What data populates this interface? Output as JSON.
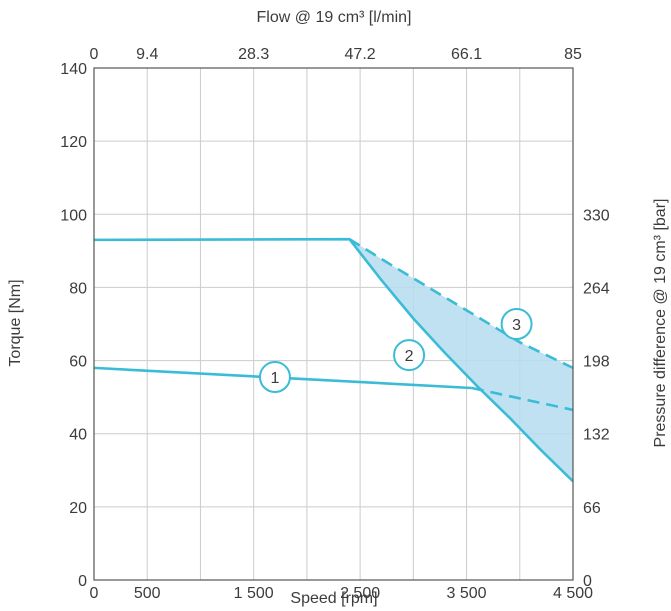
{
  "chart_data": {
    "type": "line",
    "title": "",
    "xlabel": "Speed [rpm]",
    "ylabel": "Torque [Nm]",
    "x2label": "Flow @ 19 cm³ [l/min]",
    "y2label": "Pressure difference @ 19 cm³ [bar]",
    "xlim": [
      0,
      4500
    ],
    "ylim": [
      0,
      140
    ],
    "grid": true,
    "x_ticks": [
      {
        "value": 0,
        "label": "0"
      },
      {
        "value": 500,
        "label": "500"
      },
      {
        "value": 1500,
        "label": "1 500"
      },
      {
        "value": 2500,
        "label": "2 500"
      },
      {
        "value": 3500,
        "label": "3 500"
      },
      {
        "value": 4500,
        "label": "4 500"
      }
    ],
    "x_grid": [
      0,
      500,
      1000,
      1500,
      2000,
      2500,
      3000,
      3500,
      4000,
      4500
    ],
    "y_ticks": [
      {
        "value": 0,
        "label": "0"
      },
      {
        "value": 20,
        "label": "20"
      },
      {
        "value": 40,
        "label": "40"
      },
      {
        "value": 60,
        "label": "60"
      },
      {
        "value": 80,
        "label": "80"
      },
      {
        "value": 100,
        "label": "100"
      },
      {
        "value": 120,
        "label": "120"
      },
      {
        "value": 140,
        "label": "140"
      }
    ],
    "x2_ticks": [
      {
        "value": 0,
        "label": "0"
      },
      {
        "value": 500,
        "label": "9.4"
      },
      {
        "value": 1500,
        "label": "28.3"
      },
      {
        "value": 2500,
        "label": "47.2"
      },
      {
        "value": 3500,
        "label": "66.1"
      },
      {
        "value": 4500,
        "label": "85"
      }
    ],
    "y2_ticks": [
      {
        "value": 0,
        "label": "0"
      },
      {
        "value": 20,
        "label": "66"
      },
      {
        "value": 40,
        "label": "132"
      },
      {
        "value": 60,
        "label": "198"
      },
      {
        "value": 80,
        "label": "264"
      },
      {
        "value": 100,
        "label": "330"
      }
    ],
    "colors": {
      "line": "#3bbcd6",
      "fill": "#b4dcee",
      "grid": "#cccccc",
      "axis": "#555555",
      "text": "#3c3c3c"
    },
    "series": [
      {
        "name": "1",
        "style": "solid",
        "x": [
          0,
          3550
        ],
        "y": [
          58,
          52.5
        ]
      },
      {
        "name": "1",
        "style": "dashed",
        "x": [
          3550,
          4500
        ],
        "y": [
          52.5,
          46.5
        ]
      },
      {
        "name": "2",
        "style": "solid",
        "x": [
          0,
          2400,
          2700,
          3000,
          3300,
          3600,
          3900,
          4200,
          4500
        ],
        "y": [
          93,
          93.2,
          82,
          71.5,
          62,
          53,
          44.5,
          35.5,
          27
        ]
      },
      {
        "name": "3",
        "style": "dashed",
        "x": [
          2400,
          2800,
          3200,
          3600,
          4000,
          4500
        ],
        "y": [
          93.2,
          86,
          79,
          72,
          65,
          58
        ]
      }
    ],
    "shaded_region": {
      "upper_x": [
        2400,
        2800,
        3200,
        3600,
        4000,
        4500
      ],
      "upper_y": [
        93.2,
        86,
        79,
        72,
        65,
        58
      ],
      "lower_x": [
        4500,
        4200,
        3900,
        3600,
        3300,
        3000,
        2700,
        2400
      ],
      "lower_y": [
        27,
        35.5,
        44.5,
        53,
        62,
        71.5,
        82,
        93.2
      ]
    },
    "markers": [
      {
        "label": "1",
        "x": 1700,
        "y": 55.5
      },
      {
        "label": "2",
        "x": 2960,
        "y": 61.5
      },
      {
        "label": "3",
        "x": 3970,
        "y": 70
      }
    ]
  }
}
